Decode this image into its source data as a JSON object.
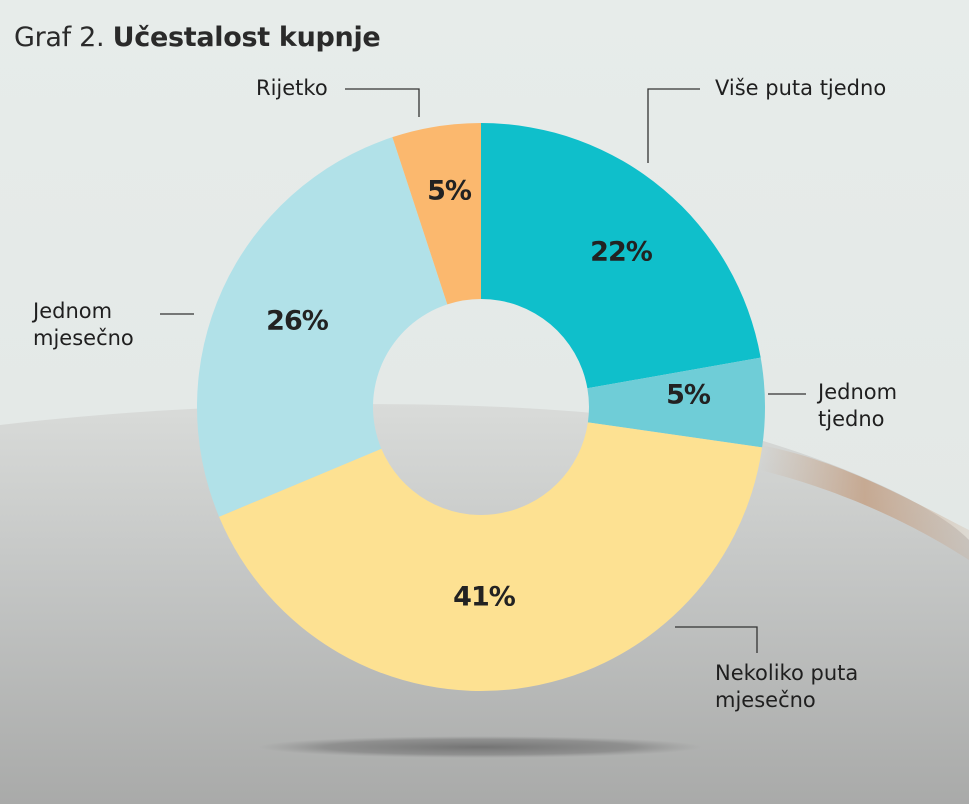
{
  "title": {
    "prefix": "Graf 2. ",
    "main": "Učestalost kupnje"
  },
  "chart_data": {
    "type": "pie",
    "style": "donut",
    "unit": "%",
    "legend": "outside labels with leader lines",
    "slices": [
      {
        "label": "Više puta tjedno",
        "value": 22,
        "value_label": "22%",
        "color": "#0fbfcb"
      },
      {
        "label": "Jednom\ntjedno",
        "value": 5,
        "value_label": "5%",
        "color": "#6fcdd7"
      },
      {
        "label": "Nekoliko puta\nmjesečno",
        "value": 41,
        "value_label": "41%",
        "color": "#fde192"
      },
      {
        "label": "Jednom\nmjesečno",
        "value": 26,
        "value_label": "26%",
        "color": "#b1e1e8"
      },
      {
        "label": "Rijetko",
        "value": 5,
        "value_label": "5%",
        "color": "#fbb86e"
      }
    ]
  }
}
